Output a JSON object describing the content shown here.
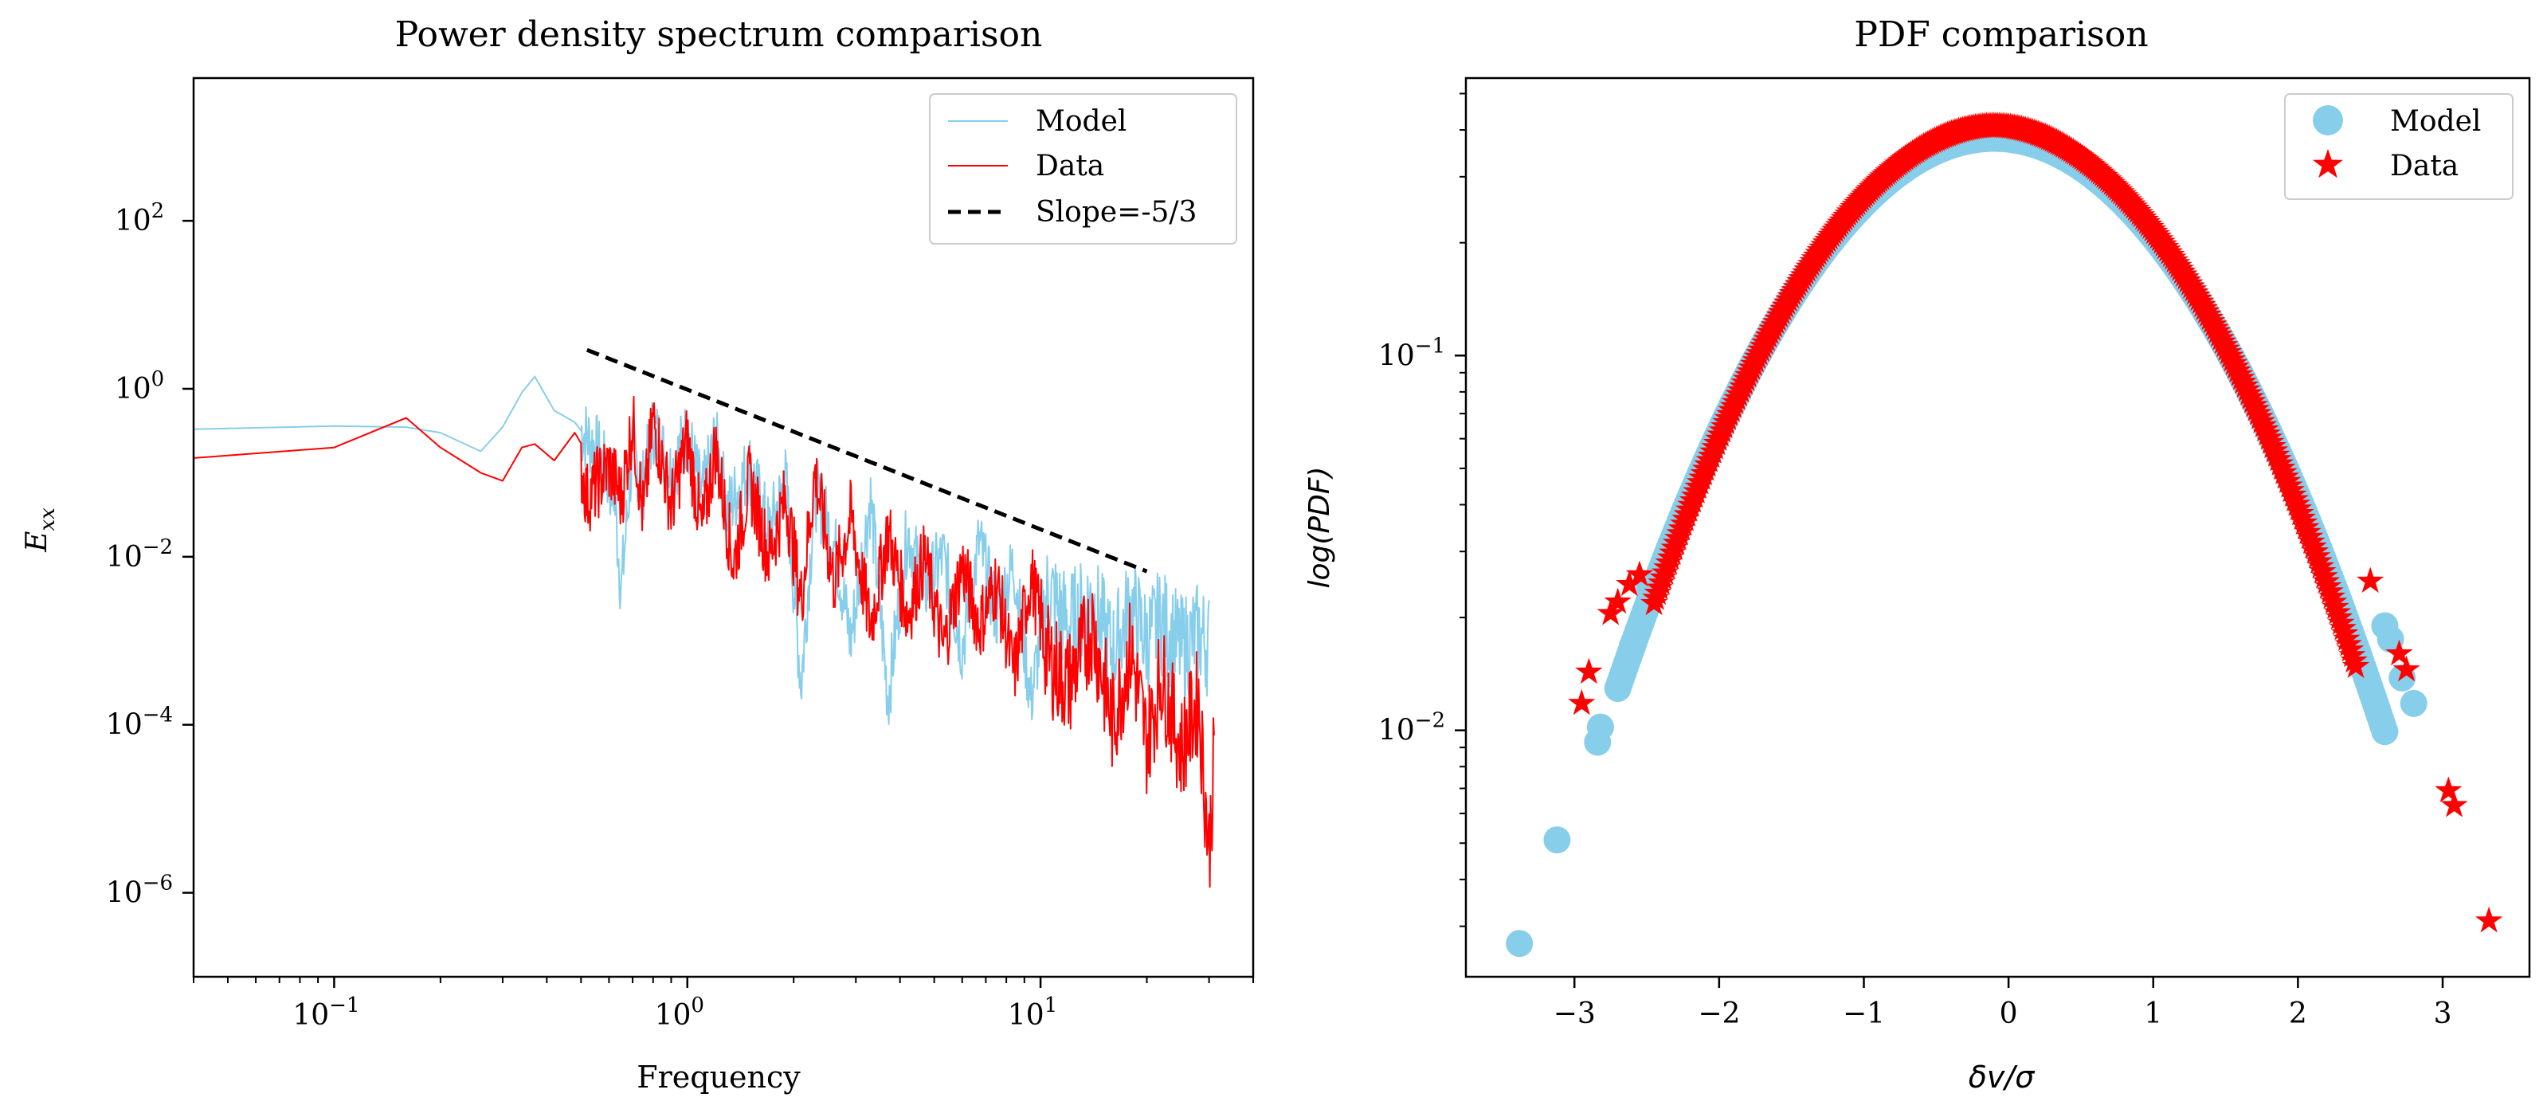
{
  "chart_data": [
    {
      "type": "line",
      "title": "Power density spectrum comparison",
      "xlabel": "Frequency",
      "ylabel_base": "E",
      "ylabel_sub": "xx",
      "xscale": "log",
      "yscale": "log",
      "xlim": [
        0.04,
        40
      ],
      "ylim": [
        1e-07,
        5000
      ],
      "x_ticks": [
        {
          "value": 0.1,
          "base": "10",
          "exp": "−1"
        },
        {
          "value": 1,
          "base": "10",
          "exp": "0"
        },
        {
          "value": 10,
          "base": "10",
          "exp": "1"
        }
      ],
      "y_ticks": [
        {
          "value": 1e-06,
          "base": "10",
          "exp": "−6"
        },
        {
          "value": 0.0001,
          "base": "10",
          "exp": "−4"
        },
        {
          "value": 0.01,
          "base": "10",
          "exp": "−2"
        },
        {
          "value": 1,
          "base": "10",
          "exp": "0"
        },
        {
          "value": 100,
          "base": "10",
          "exp": "2"
        }
      ],
      "legend_position": "top-right",
      "series": [
        {
          "name": "Model",
          "color": "#87ceeb",
          "style": "solid",
          "x": [
            0.04,
            0.1,
            0.16,
            0.2,
            0.26,
            0.3,
            0.34,
            0.37,
            0.42,
            0.48,
            0.55,
            0.62,
            0.65,
            0.7,
            0.75,
            0.8,
            0.9,
            1.0,
            1.1,
            1.2,
            1.3,
            1.5,
            1.7,
            1.9,
            2.1,
            2.3,
            2.6,
            2.9,
            3.3,
            3.7,
            4.2,
            4.7,
            5.3,
            6.0,
            6.7,
            7.5,
            8.4,
            9.4,
            10.5,
            12,
            14,
            16,
            18,
            20,
            22,
            25,
            28,
            30
          ],
          "y": [
            0.33,
            0.36,
            0.35,
            0.3,
            0.18,
            0.35,
            0.9,
            1.4,
            0.55,
            0.4,
            0.2,
            0.06,
            0.004,
            0.2,
            0.07,
            0.35,
            0.1,
            0.3,
            0.05,
            0.25,
            0.035,
            0.12,
            0.02,
            0.08,
            0.0003,
            0.06,
            0.015,
            0.001,
            0.05,
            0.0002,
            0.02,
            0.004,
            0.01,
            0.0008,
            0.015,
            0.002,
            0.008,
            0.0002,
            0.004,
            0.0015,
            0.003,
            0.0007,
            0.0025,
            0.001,
            0.0017,
            0.0008,
            0.0012,
            0.0009
          ]
        },
        {
          "name": "Data",
          "color": "#ff0000",
          "style": "solid",
          "x": [
            0.04,
            0.1,
            0.16,
            0.2,
            0.26,
            0.3,
            0.34,
            0.37,
            0.42,
            0.48,
            0.52,
            0.6,
            0.65,
            0.7,
            0.75,
            0.8,
            0.9,
            1.0,
            1.1,
            1.2,
            1.35,
            1.5,
            1.7,
            1.9,
            2.1,
            2.3,
            2.6,
            2.9,
            3.3,
            3.7,
            4.2,
            4.7,
            5.3,
            6.0,
            6.7,
            7.5,
            8.4,
            9.4,
            10.5,
            12,
            14,
            16,
            18,
            20,
            22,
            25,
            28,
            30,
            31
          ],
          "y": [
            0.15,
            0.2,
            0.45,
            0.2,
            0.1,
            0.08,
            0.2,
            0.22,
            0.14,
            0.3,
            0.05,
            0.12,
            0.05,
            0.4,
            0.03,
            0.45,
            0.04,
            0.25,
            0.02,
            0.2,
            0.008,
            0.08,
            0.01,
            0.05,
            0.003,
            0.1,
            0.005,
            0.03,
            0.0015,
            0.02,
            0.002,
            0.01,
            0.0008,
            0.008,
            0.0015,
            0.005,
            0.0004,
            0.006,
            0.0006,
            0.0003,
            0.0015,
            0.0001,
            0.0008,
            6e-05,
            0.0004,
            5e-05,
            0.0002,
            3e-06,
            4e-05
          ]
        },
        {
          "name": "Slope=-5/3",
          "color": "#000000",
          "style": "dashed",
          "x": [
            0.52,
            20
          ],
          "y": [
            2.9,
            0.0067
          ]
        }
      ]
    },
    {
      "type": "scatter",
      "title": "PDF comparison",
      "xlabel": "δv/σ",
      "ylabel": "log(PDF)",
      "xscale": "linear",
      "yscale": "log",
      "xlim": [
        -3.75,
        3.6
      ],
      "ylim": [
        0.0022,
        0.55
      ],
      "x_ticks": [
        {
          "value": -3,
          "label": "−3"
        },
        {
          "value": -2,
          "label": "−2"
        },
        {
          "value": -1,
          "label": "−1"
        },
        {
          "value": 0,
          "label": "0"
        },
        {
          "value": 1,
          "label": "1"
        },
        {
          "value": 2,
          "label": "2"
        },
        {
          "value": 3,
          "label": "3"
        }
      ],
      "y_ticks": [
        {
          "value": 0.01,
          "base": "10",
          "exp": "−2"
        },
        {
          "value": 0.1,
          "base": "10",
          "exp": "−1"
        }
      ],
      "legend_position": "top-right",
      "series": [
        {
          "name": "Model",
          "color": "#87ceeb",
          "marker": "circle",
          "curve": {
            "peak": 0.38,
            "center": -0.1,
            "sigma": 1.0,
            "from": -2.7,
            "to": 2.6
          },
          "outliers_x": [
            -3.38,
            -3.12,
            -2.84,
            -2.82,
            -2.6,
            -2.48,
            2.6,
            2.64,
            2.72,
            2.8
          ],
          "outliers_y": [
            0.0027,
            0.0051,
            0.0093,
            0.0102,
            0.0168,
            0.024,
            0.019,
            0.0175,
            0.0138,
            0.0118
          ]
        },
        {
          "name": "Data",
          "color": "#ff0000",
          "marker": "star",
          "curve": {
            "peak": 0.41,
            "center": -0.1,
            "sigma": 0.97,
            "from": -2.45,
            "to": 2.4
          },
          "outliers_x": [
            -2.95,
            -2.9,
            -2.75,
            -2.7,
            -2.62,
            -2.55,
            2.5,
            2.7,
            2.75,
            3.04,
            3.08,
            3.32
          ],
          "outliers_y": [
            0.0118,
            0.0143,
            0.0205,
            0.022,
            0.0245,
            0.026,
            0.025,
            0.016,
            0.0145,
            0.0069,
            0.0063,
            0.0031
          ]
        }
      ]
    }
  ]
}
